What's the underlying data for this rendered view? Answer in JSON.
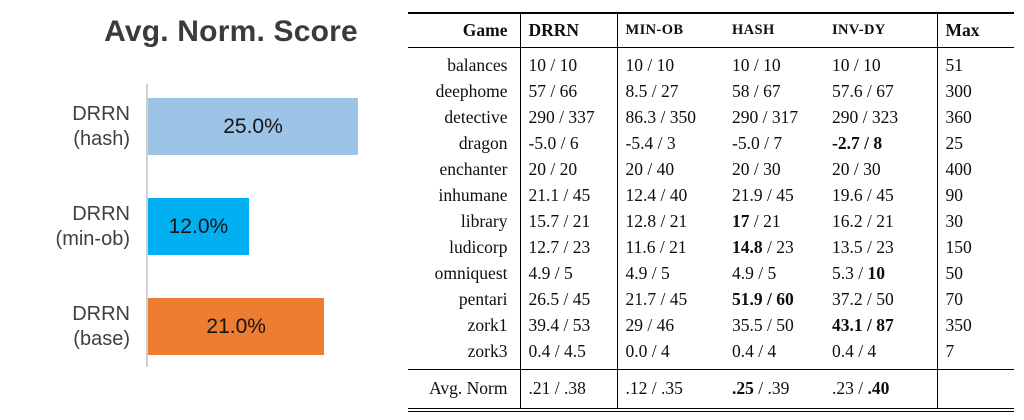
{
  "chart_data": [
    {
      "type": "bar",
      "orientation": "horizontal",
      "title": "Avg. Norm. Score",
      "categories": [
        "DRRN\n(hash)",
        "DRRN\n(min-ob)",
        "DRRN\n(base)"
      ],
      "values": [
        25.0,
        12.0,
        21.0
      ],
      "value_labels": [
        "25.0%",
        "12.0%",
        "21.0%"
      ],
      "colors": [
        "#9dc3e6",
        "#00b0f0",
        "#ed7d31"
      ],
      "xlim": [
        0,
        30
      ],
      "grid": false,
      "legend_position": "none"
    },
    {
      "type": "table",
      "columns": [
        "Game",
        "DRRN",
        "MIN-OB",
        "HASH",
        "INV-DY",
        "Max"
      ],
      "rows": [
        {
          "game": "balances",
          "cells": [
            "10 / 10",
            "10 / 10",
            "10 / 10",
            "10 / 10",
            "51"
          ]
        },
        {
          "game": "deephome",
          "cells": [
            "57 / 66",
            "8.5 / 27",
            "58 / 67",
            "57.6 / 67",
            "300"
          ]
        },
        {
          "game": "detective",
          "cells": [
            "290 / 337",
            "86.3 / 350",
            "290 / 317",
            "290 / 323",
            "360"
          ]
        },
        {
          "game": "dragon",
          "cells": [
            "-5.0 / 6",
            "-5.4 / 3",
            "-5.0 / 7",
            "**-2.7 / 8**",
            "25"
          ]
        },
        {
          "game": "enchanter",
          "cells": [
            "20 / 20",
            "20 / 40",
            "20 / 30",
            "20 / 30",
            "400"
          ]
        },
        {
          "game": "inhumane",
          "cells": [
            "21.1 / 45",
            "12.4 / 40",
            "21.9 / 45",
            "19.6 / 45",
            "90"
          ]
        },
        {
          "game": "library",
          "cells": [
            "15.7 / 21",
            "12.8 / 21",
            "**17** / 21",
            "16.2 / 21",
            "30"
          ]
        },
        {
          "game": "ludicorp",
          "cells": [
            "12.7 / 23",
            "11.6 / 21",
            "**14.8** / 23",
            "13.5 / 23",
            "150"
          ]
        },
        {
          "game": "omniquest",
          "cells": [
            "4.9 / 5",
            "4.9 / 5",
            "4.9 / 5",
            "5.3 / **10**",
            "50"
          ]
        },
        {
          "game": "pentari",
          "cells": [
            "26.5 / 45",
            "21.7 / 45",
            "**51.9 / 60**",
            "37.2 / 50",
            "70"
          ]
        },
        {
          "game": "zork1",
          "cells": [
            "39.4 / 53",
            "29 / 46",
            "35.5 / 50",
            "**43.1 / 87**",
            "350"
          ]
        },
        {
          "game": "zork3",
          "cells": [
            "0.4 / 4.5",
            "0.0 / 4",
            "0.4 / 4",
            "0.4 / 4",
            "7"
          ]
        }
      ],
      "footer": {
        "game": "Avg. Norm",
        "cells": [
          ".21 / .38",
          ".12 / .35",
          "**.25** / .39",
          ".23 / **.40**",
          ""
        ]
      }
    }
  ]
}
